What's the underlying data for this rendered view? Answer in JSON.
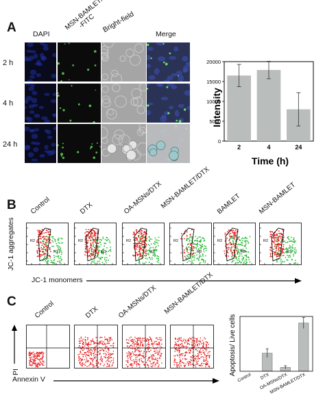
{
  "panel_a": {
    "letter": "A",
    "column_headers": [
      "DAPI",
      "MSN-BAMLET/DTX\n-FITC",
      "Bright-field",
      "Merge"
    ],
    "row_labels": [
      "2 h",
      "4 h",
      "24 h"
    ]
  },
  "panel_b": {
    "letter": "B",
    "sample_labels": [
      "Control",
      "DTX",
      "OA-MSNs/DTX",
      "MSN-BAMLET/DTX",
      "BAMLET",
      "MSN-BAMLET"
    ],
    "y_axis_label": "JC-1 aggregates",
    "x_axis_label": "JC-1 monomers",
    "gate_labels": [
      "R2",
      "R3"
    ]
  },
  "panel_c": {
    "letter": "C",
    "sample_labels": [
      "Control",
      "DTX",
      "OA-MSNs/DTX",
      "MSN-BAMLET/DTX"
    ],
    "y_axis_label": "PI",
    "x_axis_label": "Annexin V"
  },
  "chart_data": [
    {
      "type": "bar",
      "categories": [
        "2",
        "4",
        "24"
      ],
      "values": [
        16500,
        17900,
        8000
      ],
      "errors": [
        2800,
        2200,
        4200
      ],
      "xlabel": "Time (h)",
      "ylabel": "Intensity",
      "ylim": [
        0,
        20000
      ],
      "yticks": [
        0,
        5000,
        10000,
        15000,
        20000
      ],
      "bar_color": "#b9bdbc"
    },
    {
      "type": "bar",
      "categories": [
        "Control",
        "DTX",
        "OA-MSNs/DTX",
        "MSN-BAMLET/DTX"
      ],
      "values": [
        0,
        0.33,
        0.07,
        0.88
      ],
      "errors": [
        0,
        0.08,
        0.03,
        0.1
      ],
      "xlabel": "",
      "ylabel": "Apoptosis/ Live cells",
      "ylim": [
        0,
        1
      ],
      "bar_color": "#b9bdbc"
    }
  ]
}
